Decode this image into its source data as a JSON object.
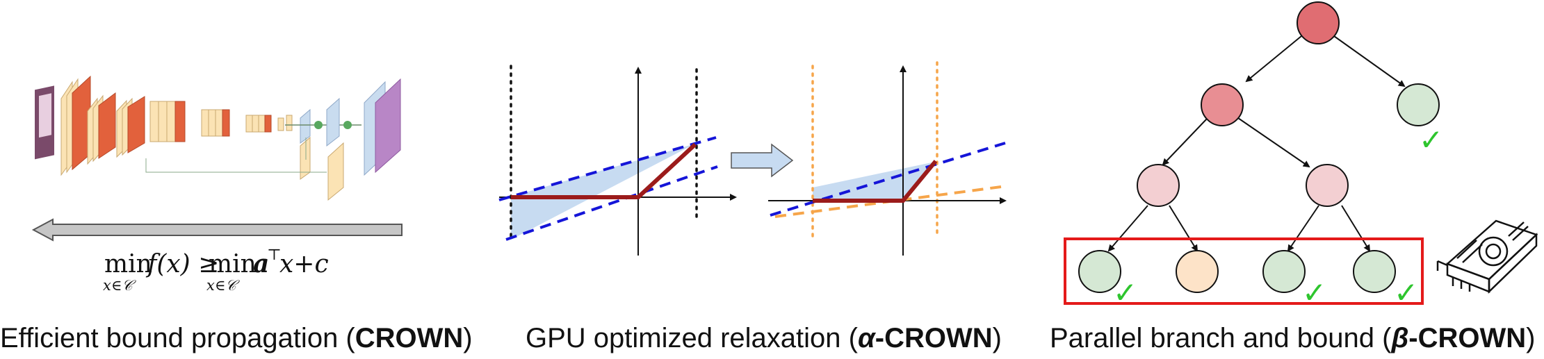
{
  "panel1": {
    "caption_text": "Efficient bound propagation (",
    "caption_bold": "CROWN",
    "caption_close": ")",
    "eq_min1": "min",
    "eq_sub1": "x∈𝒞",
    "eq_f": "f(x) ≥",
    "eq_min2": "min",
    "eq_sub2": "x∈𝒞",
    "eq_rhs": "𝒂",
    "eq_sup": "⊤",
    "eq_tail": "x+c"
  },
  "panel2": {
    "caption_text": "GPU optimized relaxation (",
    "caption_alpha": "α",
    "caption_bold": "-CROWN",
    "caption_close": ")"
  },
  "panel3": {
    "caption_text": "Parallel branch and bound (",
    "caption_beta": "β",
    "caption_bold": "-CROWN",
    "caption_close": ")",
    "check_glyph": "✓"
  },
  "colors": {
    "root": "#e06d72",
    "level2_left": "#e88e93",
    "level3": "#f3cfd2",
    "verified_green": "#d5e8d4",
    "pending_peach": "#fde3c8",
    "relaxation_fill": "#c7dbf1",
    "relu_red": "#9b1b1b",
    "bound_blue": "#1515d8",
    "alpha_orange": "#f6a54a",
    "highlight_red": "#e41a1a",
    "check_green": "#2ec52e"
  }
}
